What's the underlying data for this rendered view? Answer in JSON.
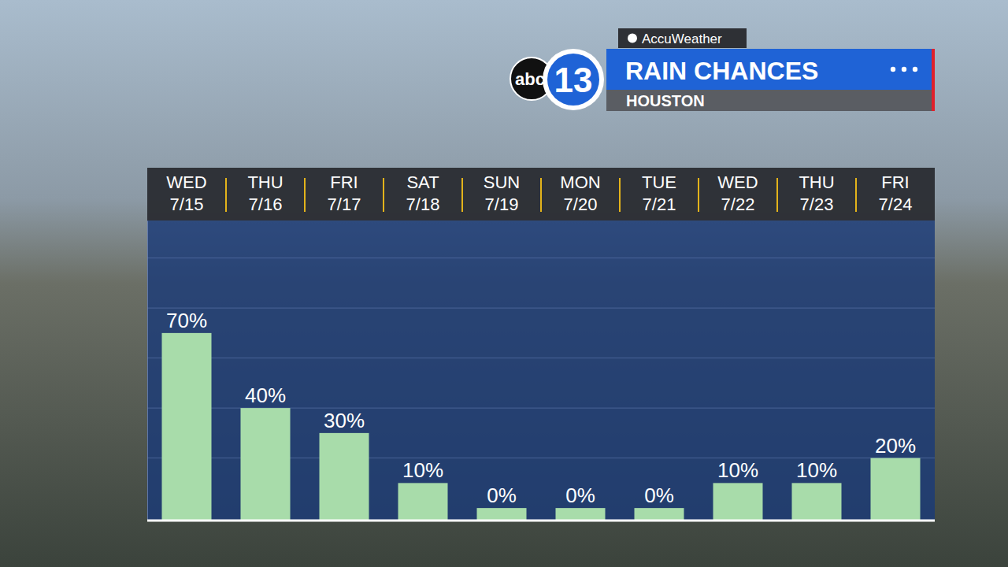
{
  "chart_data": {
    "type": "bar",
    "title": "RAIN CHANCES",
    "subtitle": "HOUSTON",
    "source": "AccuWeather",
    "logo": {
      "text": "abc",
      "number": "13"
    },
    "categories": [
      "WED 7/15",
      "THU 7/16",
      "FRI 7/17",
      "SAT 7/18",
      "SUN 7/19",
      "MON 7/20",
      "TUE 7/21",
      "WED 7/22",
      "THU 7/23",
      "FRI 7/24"
    ],
    "values": [
      70,
      40,
      30,
      10,
      0,
      0,
      0,
      10,
      10,
      20
    ],
    "value_labels": [
      "70%",
      "40%",
      "30%",
      "10%",
      "0%",
      "0%",
      "0%",
      "10%",
      "10%",
      "20%"
    ],
    "color": "#a8dcaa",
    "ylim": [
      -5,
      115
    ],
    "yticks": [
      20,
      40,
      60,
      80,
      100
    ],
    "grid": true,
    "data_labels": true,
    "tick_labels": false
  }
}
